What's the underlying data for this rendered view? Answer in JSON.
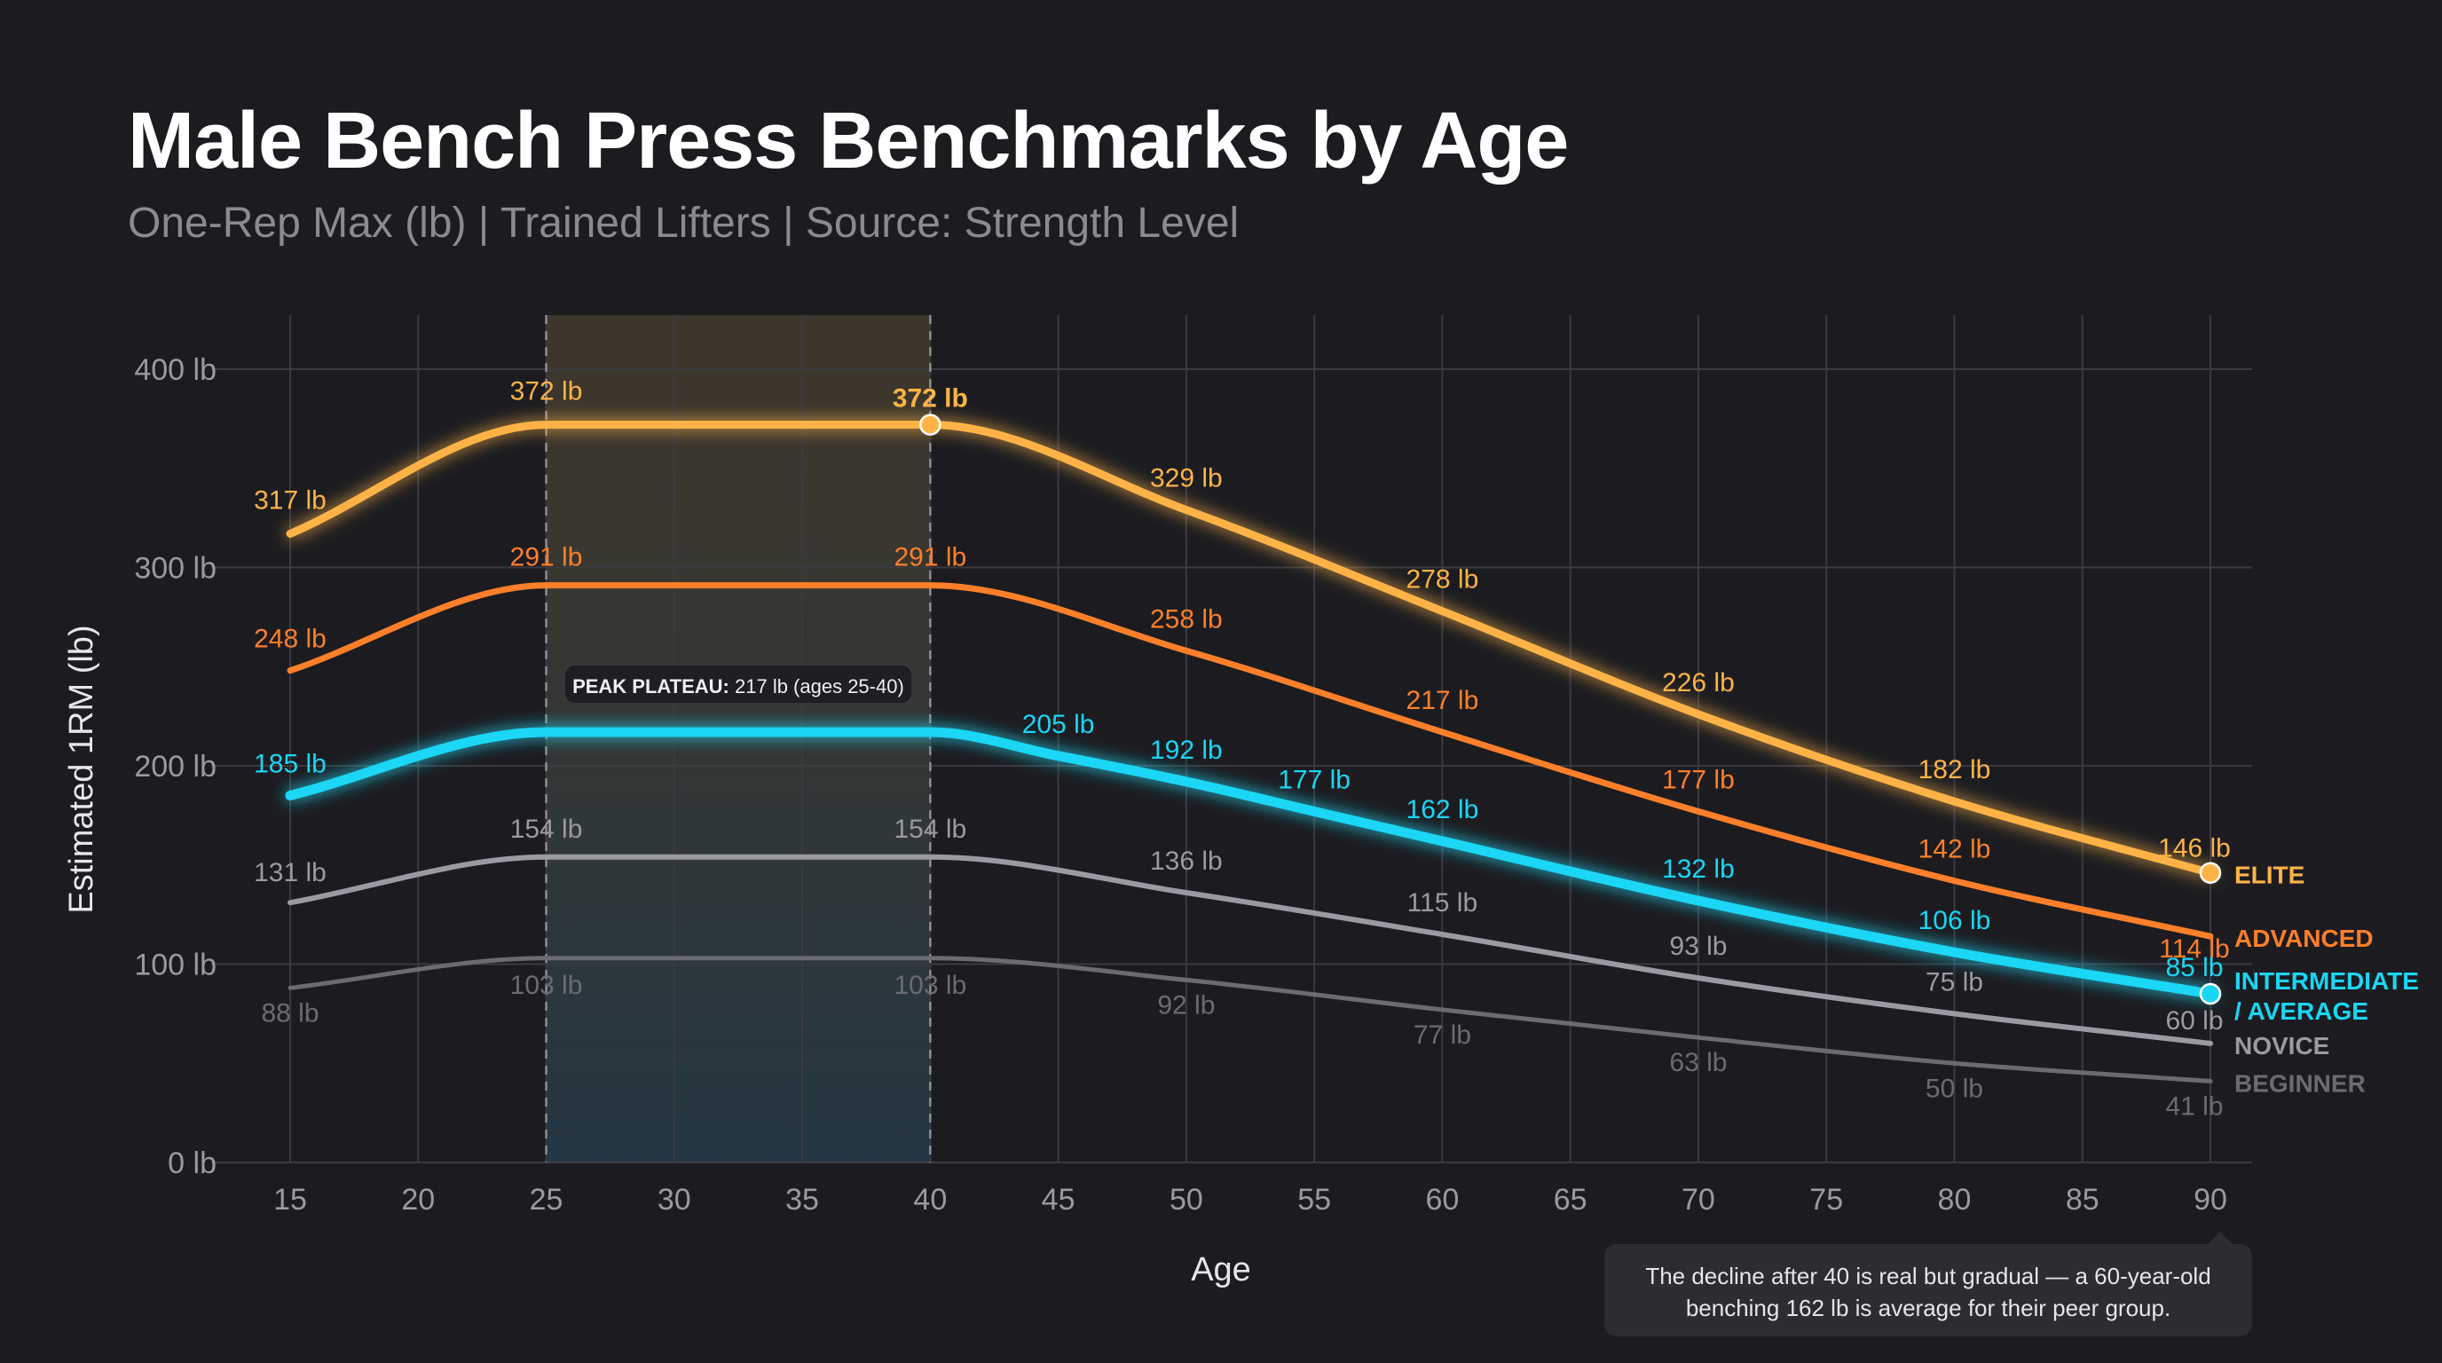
{
  "title": "Male Bench Press Benchmarks by Age",
  "subtitle": "One-Rep Max (lb) | Trained Lifters | Source: Strength Level",
  "annotation": "The decline after 40 is real but gradual — a 60-year-old benching 162 lb is average for their peer group.",
  "colors": {
    "background": "#1c1c20",
    "grid": "#3a3a40",
    "axis_text": "#9a9aa2",
    "elite": "#ffb347",
    "advanced": "#ff7f2a",
    "intermediate": "#1ad6f5",
    "novice": "#9a9aa2",
    "beginner": "#6b6b72",
    "plateau_band_top": "#4a3f2d",
    "plateau_band_bottom": "#243845"
  },
  "chart_data": {
    "type": "line",
    "x": [
      15,
      25,
      40,
      50,
      60,
      70,
      80,
      90
    ],
    "xlabel": "Age",
    "ylabel": "Estimated 1RM (lb)",
    "xlim": [
      15,
      90
    ],
    "ylim": [
      0,
      400
    ],
    "x_ticks": [
      "15",
      "20",
      "25",
      "30",
      "35",
      "40",
      "45",
      "50",
      "55",
      "60",
      "65",
      "70",
      "75",
      "80",
      "85",
      "90"
    ],
    "y_ticks": [
      "0 lb",
      "100 lb",
      "200 lb",
      "300 lb",
      "400 lb"
    ],
    "grid": true,
    "highlight_band": {
      "x_range": [
        25,
        40
      ],
      "label_bold": "PEAK PLATEAU:",
      "label_rest": " 217 lb (ages 25-40)"
    },
    "series": [
      {
        "name": "ELITE",
        "key": "elite",
        "points": [
          [
            15,
            317
          ],
          [
            25,
            372
          ],
          [
            40,
            372
          ],
          [
            50,
            329
          ],
          [
            60,
            278
          ],
          [
            70,
            226
          ],
          [
            80,
            182
          ],
          [
            90,
            146
          ]
        ],
        "labels": [
          "317 lb",
          "372 lb",
          "372 lb",
          "329 lb",
          "278 lb",
          "226 lb",
          "182 lb",
          "146 lb"
        ],
        "marker_points": [
          [
            40,
            372
          ],
          [
            90,
            146
          ]
        ]
      },
      {
        "name": "ADVANCED",
        "key": "advanced",
        "points": [
          [
            15,
            248
          ],
          [
            25,
            291
          ],
          [
            40,
            291
          ],
          [
            50,
            258
          ],
          [
            60,
            217
          ],
          [
            70,
            177
          ],
          [
            80,
            142
          ],
          [
            90,
            114
          ]
        ],
        "labels": [
          "248 lb",
          "291 lb",
          "291 lb",
          "258 lb",
          "217 lb",
          "177 lb",
          "142 lb",
          "114 lb"
        ],
        "marker_points": []
      },
      {
        "name": "INTERMEDIATE / AVERAGE",
        "name_lines": [
          "INTERMEDIATE",
          "/ AVERAGE"
        ],
        "key": "intermediate",
        "points": [
          [
            15,
            185
          ],
          [
            25,
            217
          ],
          [
            40,
            217
          ],
          [
            45,
            205
          ],
          [
            50,
            192
          ],
          [
            55,
            177
          ],
          [
            60,
            162
          ],
          [
            70,
            132
          ],
          [
            80,
            106
          ],
          [
            90,
            85
          ]
        ],
        "labels": [
          "185 lb",
          "",
          "",
          "205 lb",
          "192 lb",
          "177 lb",
          "162 lb",
          "132 lb",
          "106 lb",
          "85 lb"
        ],
        "marker_points": [
          [
            90,
            85
          ]
        ]
      },
      {
        "name": "NOVICE",
        "key": "novice",
        "points": [
          [
            15,
            131
          ],
          [
            25,
            154
          ],
          [
            40,
            154
          ],
          [
            50,
            136
          ],
          [
            60,
            115
          ],
          [
            70,
            93
          ],
          [
            80,
            75
          ],
          [
            90,
            60
          ]
        ],
        "labels": [
          "131 lb",
          "154 lb",
          "154 lb",
          "136 lb",
          "115 lb",
          "93 lb",
          "75 lb",
          "60 lb"
        ],
        "marker_points": []
      },
      {
        "name": "BEGINNER",
        "key": "beginner",
        "points": [
          [
            15,
            88
          ],
          [
            25,
            103
          ],
          [
            40,
            103
          ],
          [
            50,
            92
          ],
          [
            60,
            77
          ],
          [
            70,
            63
          ],
          [
            80,
            50
          ],
          [
            90,
            41
          ]
        ],
        "labels": [
          "88 lb",
          "103 lb",
          "103 lb",
          "92 lb",
          "77 lb",
          "63 lb",
          "50 lb",
          "41 lb"
        ],
        "marker_points": []
      }
    ]
  }
}
